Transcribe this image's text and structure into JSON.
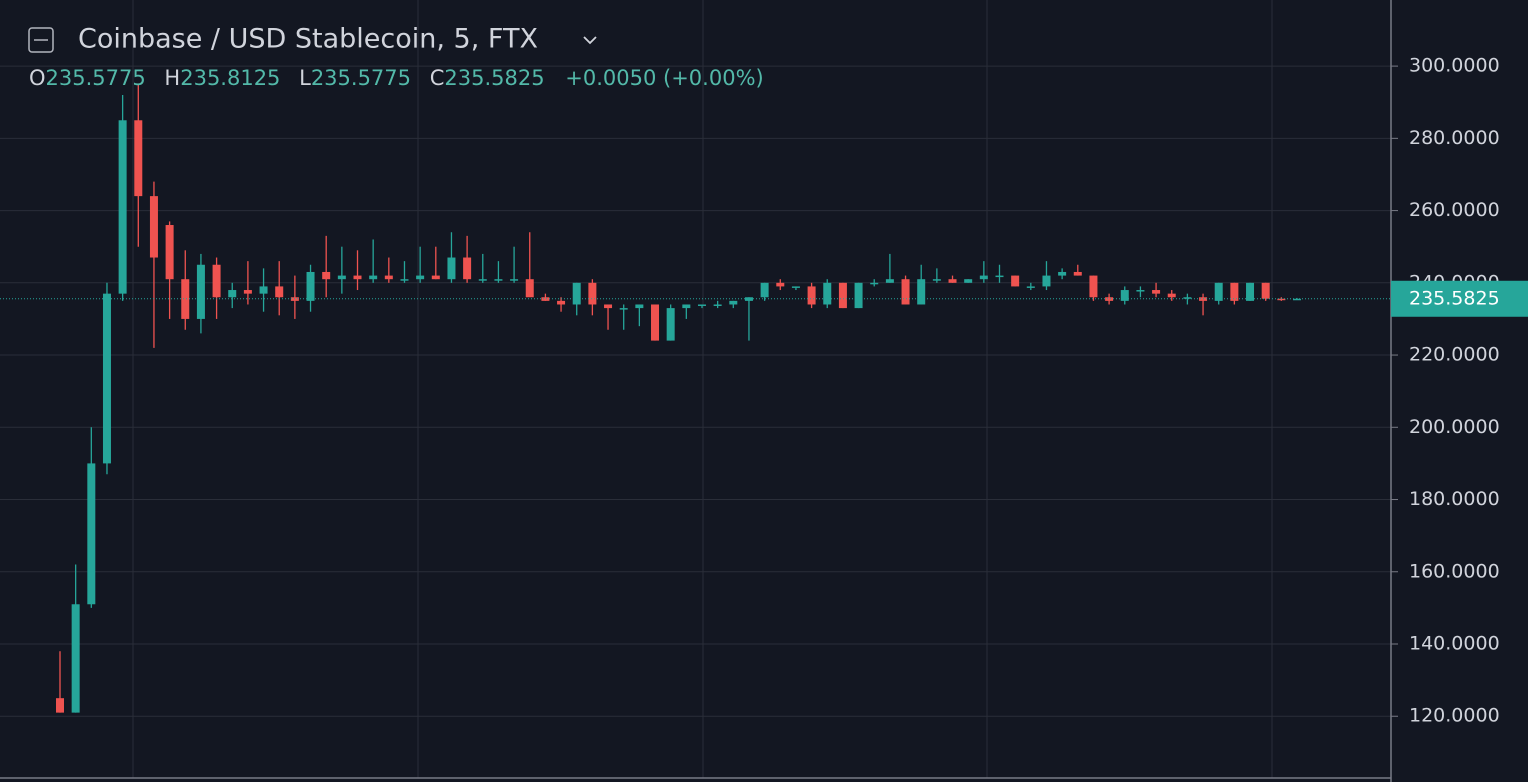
{
  "chart_data": {
    "type": "candlestick",
    "title": "Coinbase / USD Stablecoin, 5, FTX",
    "ohlc_labels": [
      "O",
      "H",
      "L",
      "C"
    ],
    "change": "+0.0050 (+0.00%)",
    "up_color": "#26a69a",
    "down_color": "#ef5350",
    "grid": true,
    "ylim": [
      102.9,
      318.3
    ],
    "yticks": [
      {
        "value": 120,
        "label": "120.0000"
      },
      {
        "value": 140,
        "label": "140.0000"
      },
      {
        "value": 160,
        "label": "160.0000"
      },
      {
        "value": 180,
        "label": "180.0000"
      },
      {
        "value": 200,
        "label": "200.0000"
      },
      {
        "value": 220,
        "label": "220.0000"
      },
      {
        "value": 240,
        "label": "240.0000"
      },
      {
        "value": 260,
        "label": "260.0000"
      },
      {
        "value": 280,
        "label": "280.0000"
      },
      {
        "value": 300,
        "label": "300.0000"
      }
    ],
    "open": [
      125,
      121,
      151,
      190,
      237,
      285,
      264,
      256,
      241,
      230,
      245,
      236,
      238,
      237,
      239,
      236,
      235,
      243,
      241,
      242,
      241,
      242,
      241,
      241,
      242,
      241,
      247,
      241,
      241,
      241,
      241,
      236,
      235,
      234,
      240,
      234,
      233,
      233,
      234,
      224,
      233,
      234,
      234,
      234,
      235,
      236,
      240,
      239,
      239,
      234,
      240,
      233,
      240,
      240,
      241,
      234,
      241,
      241,
      240,
      241,
      242,
      242,
      239,
      239,
      242,
      243,
      242,
      236,
      235,
      238,
      238,
      237,
      236,
      236,
      235,
      240,
      235,
      240,
      235.6,
      235.5775
    ],
    "high": [
      138,
      162,
      200,
      240,
      292,
      295,
      268,
      257,
      249,
      248,
      247,
      240,
      246,
      244,
      246,
      242,
      245,
      253,
      250,
      249,
      252,
      247,
      246,
      250,
      250,
      254,
      253,
      248,
      246,
      250,
      254,
      237,
      236,
      240,
      241,
      234,
      234,
      234,
      234,
      234,
      234,
      234,
      235,
      235,
      236,
      240,
      241,
      239,
      240,
      241,
      240,
      240,
      241,
      248,
      242,
      245,
      244,
      242,
      241,
      246,
      245,
      242,
      240,
      246,
      244,
      245,
      242,
      237,
      239,
      239,
      240,
      238,
      237,
      237,
      240,
      240,
      240,
      240,
      236,
      235.8125
    ],
    "low": [
      121,
      121,
      150,
      187,
      235,
      250,
      222,
      230,
      227,
      226,
      230,
      233,
      234,
      232,
      231,
      230,
      232,
      236,
      237,
      238,
      240,
      240,
      240,
      240,
      241,
      240,
      240,
      240,
      240,
      240,
      237,
      235,
      232,
      231,
      231,
      227,
      227,
      228,
      224,
      224,
      230,
      233,
      233,
      233,
      224,
      235,
      238,
      238,
      233,
      233,
      233,
      233,
      239,
      240,
      234,
      234,
      240,
      240,
      240,
      240,
      240,
      239,
      238,
      238,
      241,
      242,
      235,
      234,
      234,
      236,
      236,
      235,
      234,
      231,
      234,
      234,
      235,
      235,
      235,
      235.5775
    ],
    "close": [
      121,
      151,
      190,
      237,
      285,
      264,
      247,
      241,
      230,
      245,
      236,
      238,
      237,
      239,
      236,
      235,
      243,
      241,
      242,
      241,
      242,
      241,
      241,
      242,
      241,
      247,
      241,
      241,
      241,
      241,
      236,
      235,
      234,
      240,
      234,
      233,
      233,
      234,
      224,
      233,
      234,
      234,
      234,
      235,
      236,
      240,
      239,
      239,
      234,
      240,
      233,
      240,
      240,
      241,
      234,
      241,
      241,
      240,
      241,
      242,
      242,
      239,
      239,
      242,
      243,
      242,
      236,
      235,
      238,
      238,
      237,
      236,
      236,
      235,
      240,
      235,
      240,
      235.6,
      235.5775,
      235.5825
    ]
  }
}
